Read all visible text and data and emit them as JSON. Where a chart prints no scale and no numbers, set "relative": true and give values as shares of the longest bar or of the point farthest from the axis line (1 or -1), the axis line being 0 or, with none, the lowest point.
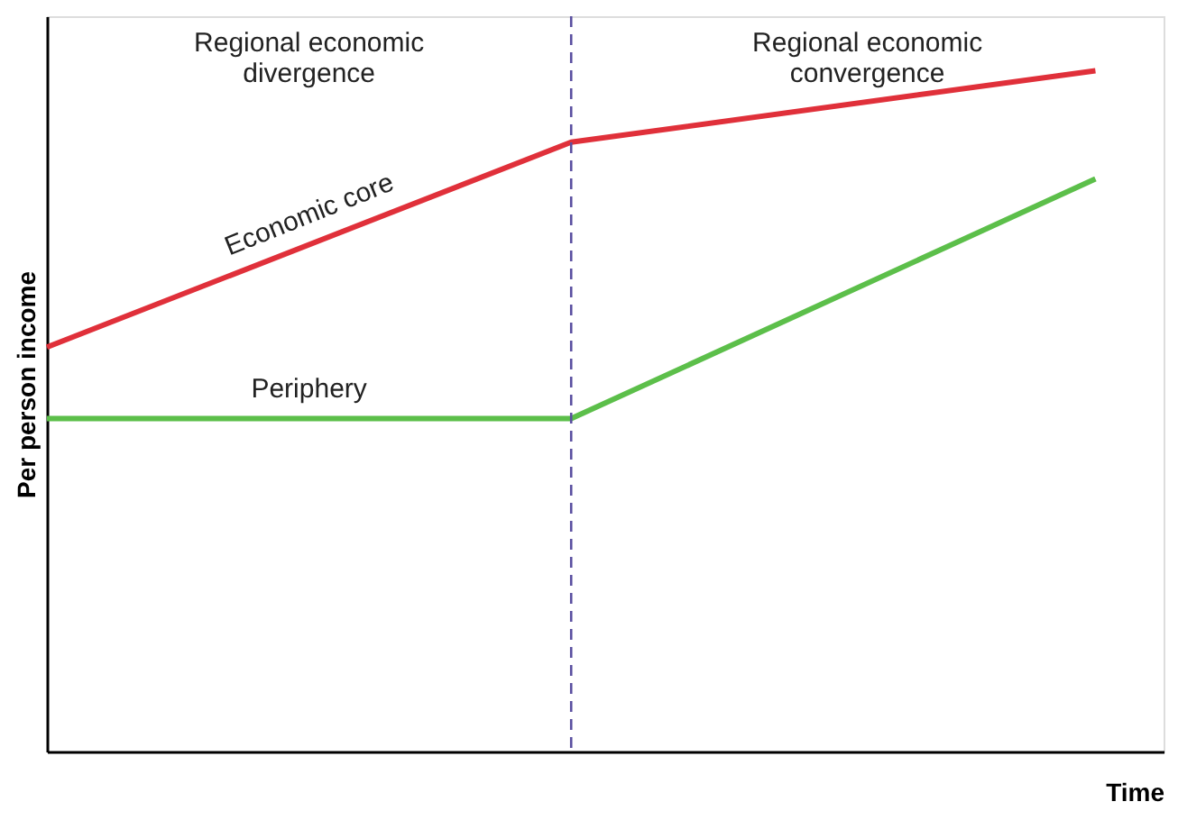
{
  "chart_data": {
    "type": "line",
    "relative": true,
    "xlabel": "Time",
    "ylabel": "Per person income",
    "categories": [
      null,
      null,
      null
    ],
    "legend": false,
    "marker": "none",
    "line_style": "solid",
    "series": [
      {
        "name": "Economic core",
        "color": "#e0303a",
        "values": [
          0.594,
          0.895,
          1
        ]
      },
      {
        "name": "Periphery",
        "color": "#5cbf4a",
        "values": [
          0.489,
          0.489,
          0.841
        ]
      }
    ],
    "annotations": [
      "Regional economic divergence",
      "Regional economic convergence"
    ]
  }
}
